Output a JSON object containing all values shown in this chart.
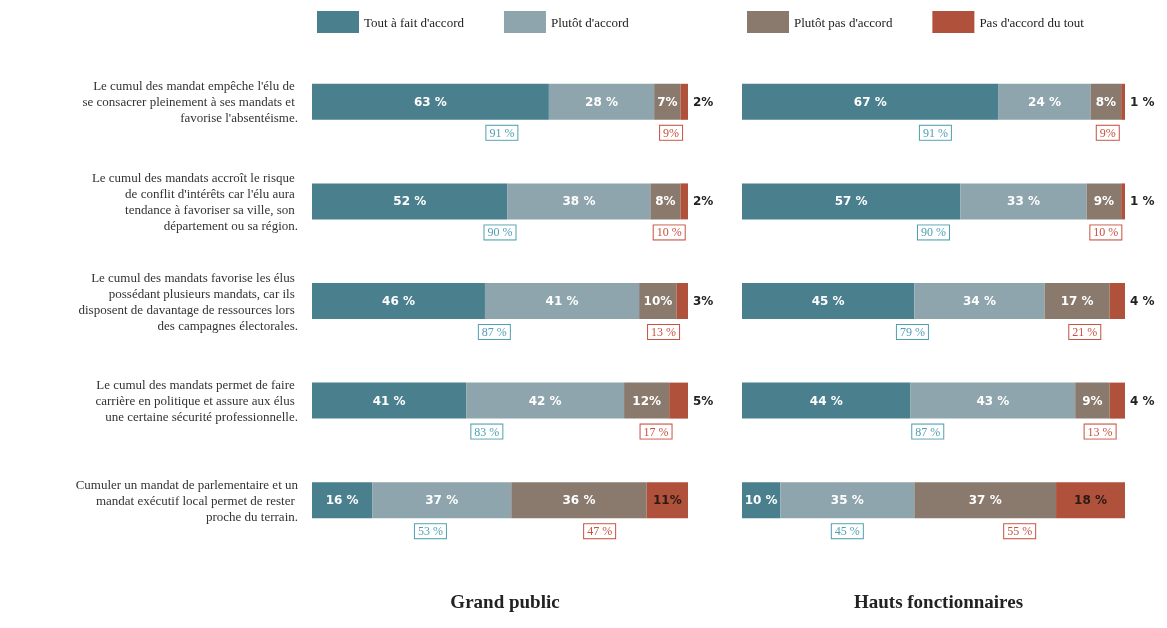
{
  "chart_data": [
    {
      "type": "bar",
      "orientation": "horizontal",
      "stacked": true,
      "title": "Grand public",
      "legend": "top",
      "tick_labels": "y",
      "xlim": [
        0,
        100
      ],
      "categories": [
        "Le cumul des mandat empêche l'élu de se consacrer pleinement à ses mandats et favorise l'absentéisme.",
        "Le cumul des mandats accroît le risque de conflit d'intérêts car l'élu aura tendance à favoriser sa ville, son département ou sa région.",
        "Le cumul des mandats favorise les élus possédant plusieurs mandats, car ils disposent de davantage de ressources lors des campagnes électorales.",
        "Le cumul des mandats permet de faire carrière en politique et assure aux élus une certaine sécurité professionnelle.",
        "Cumuler un mandat de parlementaire et un mandat exécutif local permet de rester proche du terrain."
      ],
      "series": [
        {
          "name": "Tout à fait d'accord",
          "color": "#4a7f8e",
          "values": [
            63,
            52,
            46,
            41,
            16
          ],
          "value_labels": [
            "63 %",
            "52 %",
            "46 %",
            "41 %",
            "16 %"
          ]
        },
        {
          "name": "Plutôt d'accord",
          "color": "#8fa5ad",
          "values": [
            28,
            38,
            41,
            42,
            37
          ],
          "value_labels": [
            "28 %",
            "38 %",
            "41 %",
            "42 %",
            "37 %"
          ]
        },
        {
          "color": "#8a7a6e",
          "values": [
            7,
            8,
            10,
            12,
            36
          ],
          "value_labels": [
            "7%",
            "8%",
            "10%",
            "12%",
            "36 %"
          ]
        },
        {
          "color": "#b0513c",
          "values": [
            2,
            2,
            3,
            5,
            11
          ],
          "value_labels": [
            "2%",
            "2%",
            "3%",
            "5%",
            "11%"
          ]
        }
      ],
      "annotations": [
        "91 %",
        "9%",
        "90 %",
        "10 %",
        "87 %",
        "13 %",
        "83 %",
        "17 %",
        "53 %",
        "47 %"
      ]
    },
    {
      "type": "bar",
      "orientation": "horizontal",
      "stacked": true,
      "title": "Hauts fonctionnaires",
      "legend": "top",
      "tick_labels": false,
      "xlim": [
        0,
        100
      ],
      "categories": [
        null,
        null,
        null,
        null,
        null
      ],
      "series": [
        {
          "color": "#4a7f8e",
          "values": [
            67,
            57,
            45,
            44,
            10
          ],
          "value_labels": [
            "67 %",
            "57 %",
            "45 %",
            "44 %",
            "10 %"
          ]
        },
        {
          "color": "#8fa5ad",
          "values": [
            24,
            33,
            34,
            43,
            35
          ],
          "value_labels": [
            "24 %",
            "33 %",
            "34 %",
            "43 %",
            "35 %"
          ]
        },
        {
          "name": "Plutôt pas d'accord",
          "color": "#8a7a6e",
          "values": [
            8,
            9,
            17,
            9,
            37
          ],
          "value_labels": [
            "8%",
            "9%",
            "17 %",
            "9%",
            "37 %"
          ]
        },
        {
          "name": "Pas d'accord du tout",
          "color": "#b0513c",
          "values": [
            1,
            1,
            4,
            4,
            18
          ],
          "value_labels": [
            "1 %",
            "1 %",
            "4 %",
            "4 %",
            "18 %"
          ]
        }
      ],
      "annotations": [
        "91 %",
        "9%",
        "90 %",
        "10 %",
        "79 %",
        "21 %",
        "87 %",
        "13 %",
        "45 %",
        "55 %"
      ]
    }
  ]
}
